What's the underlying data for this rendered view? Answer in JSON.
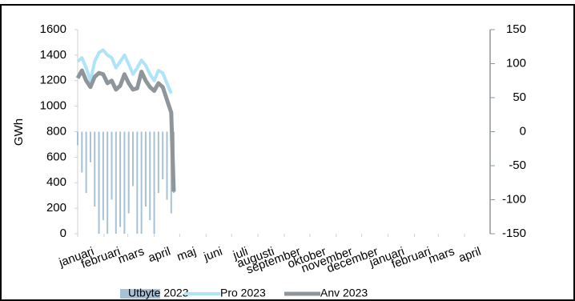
{
  "chart_data": {
    "type": "combo",
    "y_label": "GWh",
    "x": [
      0,
      5,
      10,
      15,
      20,
      25,
      30,
      35,
      40,
      45,
      50,
      55,
      60,
      65,
      70,
      75,
      80,
      85,
      90,
      95,
      100,
      105,
      110,
      113
    ],
    "xlim": [
      0,
      485
    ],
    "xticks": [
      {
        "value": 0,
        "label": "januari"
      },
      {
        "value": 31,
        "label": "februari"
      },
      {
        "value": 59,
        "label": "mars"
      },
      {
        "value": 90,
        "label": "april"
      },
      {
        "value": 120,
        "label": "maj"
      },
      {
        "value": 151,
        "label": "juni"
      },
      {
        "value": 181,
        "label": "juli"
      },
      {
        "value": 212,
        "label": "augusti"
      },
      {
        "value": 243,
        "label": "september"
      },
      {
        "value": 273,
        "label": "oktober"
      },
      {
        "value": 304,
        "label": "november"
      },
      {
        "value": 334,
        "label": "december"
      },
      {
        "value": 365,
        "label": "januari"
      },
      {
        "value": 396,
        "label": "februari"
      },
      {
        "value": 424,
        "label": "mars"
      },
      {
        "value": 455,
        "label": "april"
      }
    ],
    "ylim": [
      0,
      1600
    ],
    "yticks": [
      0,
      200,
      400,
      600,
      800,
      1000,
      1200,
      1400,
      1600
    ],
    "y2lim": [
      -150,
      150
    ],
    "y2ticks": [
      -150,
      -100,
      -50,
      0,
      50,
      100,
      150
    ],
    "series": [
      {
        "name": "Utbyte 2023",
        "kind": "bar",
        "axis": "y2",
        "color": "#a7c1d6",
        "values": [
          -20,
          -60,
          -90,
          -45,
          -110,
          -150,
          -130,
          -150,
          -100,
          -150,
          -140,
          -150,
          -120,
          -80,
          -150,
          -150,
          -110,
          -130,
          -150,
          -90,
          -70,
          -100,
          -120,
          -90
        ]
      },
      {
        "name": "Pro 2023",
        "kind": "line",
        "color": "#aee3f8",
        "values": [
          1350,
          1380,
          1300,
          1200,
          1350,
          1420,
          1440,
          1400,
          1380,
          1300,
          1350,
          1400,
          1330,
          1250,
          1300,
          1360,
          1320,
          1250,
          1200,
          1280,
          1260,
          1180,
          1100,
          null
        ]
      },
      {
        "name": "Anv 2023",
        "kind": "line",
        "color": "#8e969c",
        "values": [
          1220,
          1280,
          1200,
          1150,
          1230,
          1260,
          1250,
          1180,
          1200,
          1130,
          1160,
          1250,
          1180,
          1130,
          1140,
          1270,
          1200,
          1150,
          1120,
          1180,
          1150,
          1050,
          950,
          330
        ]
      }
    ]
  }
}
